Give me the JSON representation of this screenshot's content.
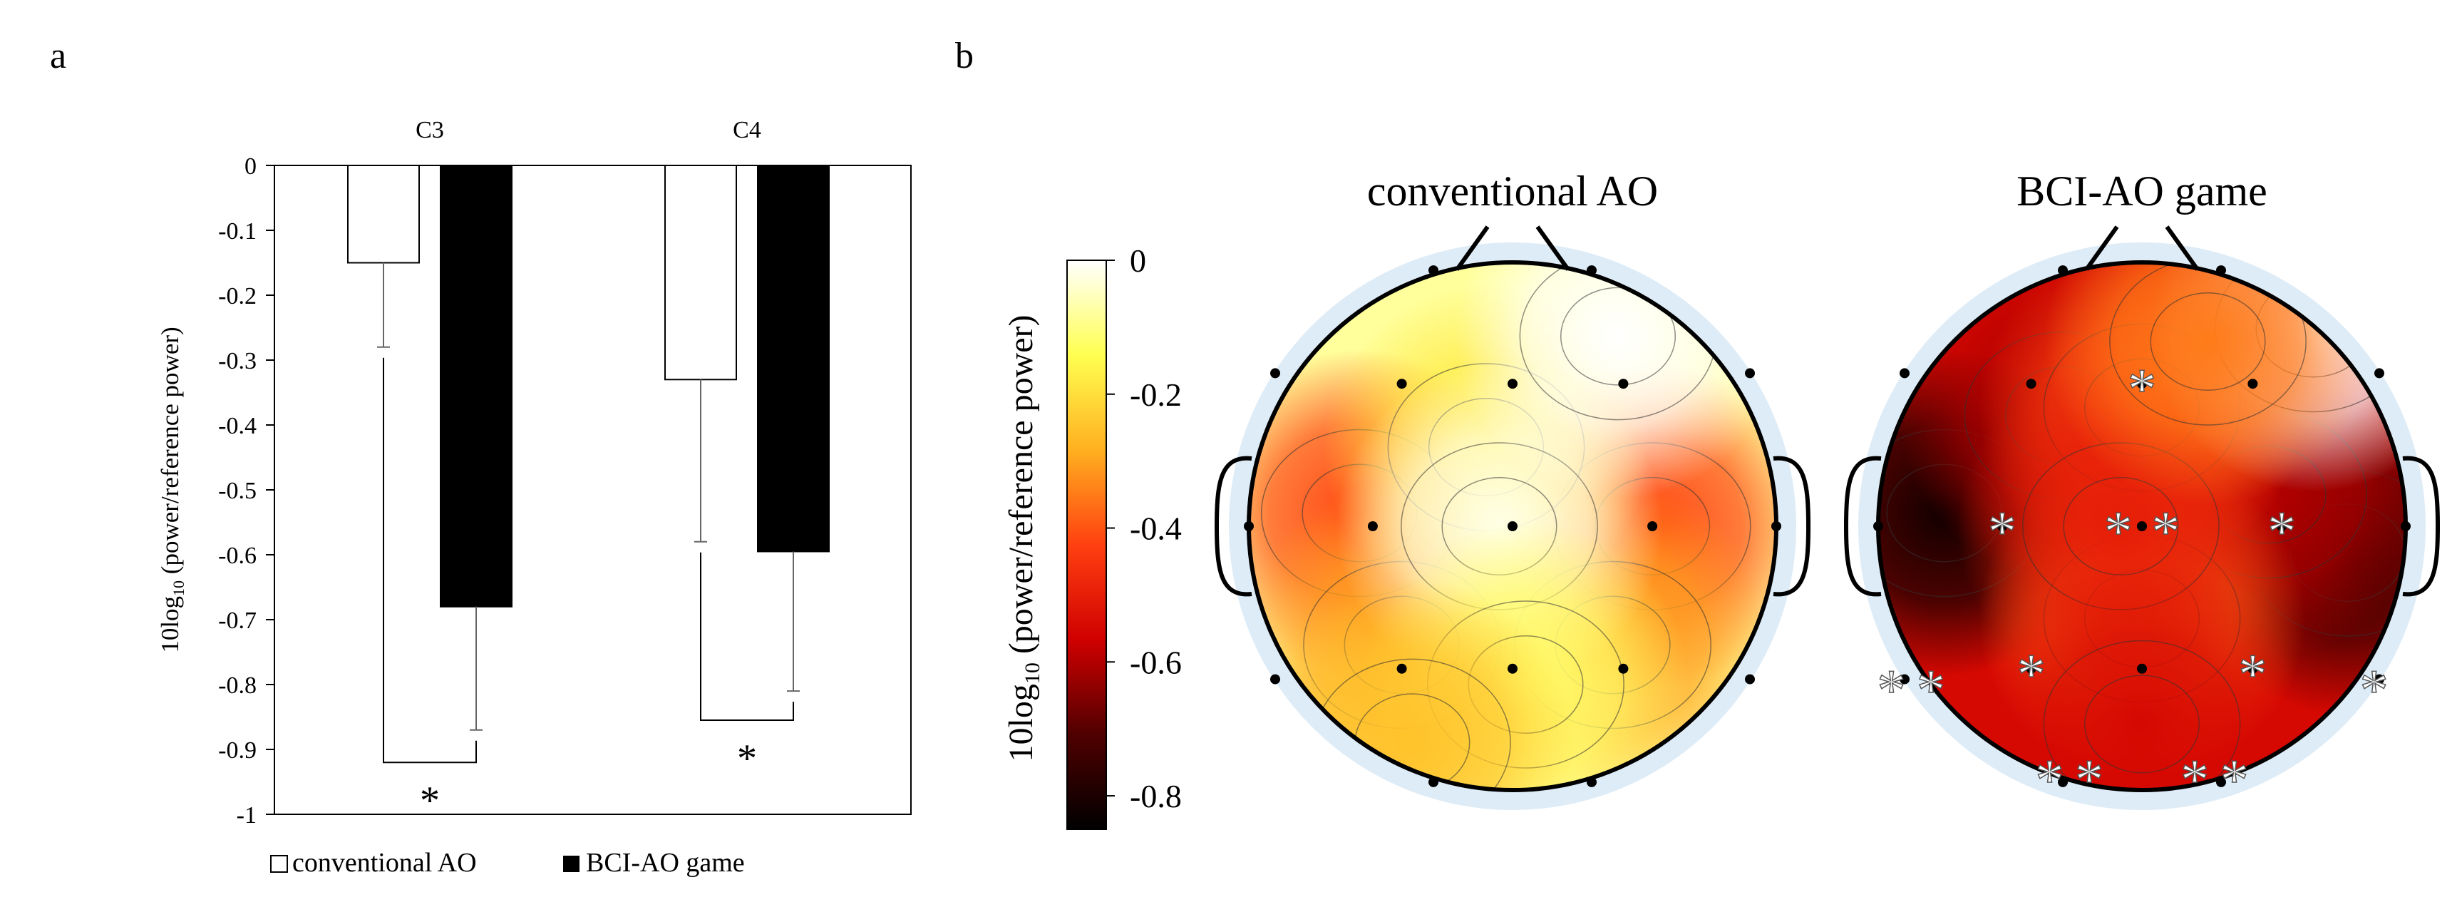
{
  "panel_a_label": "a",
  "panel_b_label": "b",
  "chart_data": [
    {
      "type": "bar",
      "panel": "a",
      "categories": [
        "C3",
        "C4"
      ],
      "series": [
        {
          "name": "conventional AO",
          "values": [
            -0.15,
            -0.33
          ],
          "errors": [
            0.13,
            0.25
          ],
          "fill": "#ffffff"
        },
        {
          "name": "BCI-AO game",
          "values": [
            -0.68,
            -0.595
          ],
          "errors": [
            0.19,
            0.215
          ],
          "fill": "#000000"
        }
      ],
      "ylabel_main": "10log",
      "ylabel_sub": "10",
      "ylabel_rest": " (power/reference power)",
      "ylim": [
        -1,
        0
      ],
      "yticks": [
        0,
        -0.1,
        -0.2,
        -0.3,
        -0.4,
        -0.5,
        -0.6,
        -0.7,
        -0.8,
        -0.9,
        -1
      ],
      "ytick_labels": [
        "0",
        "-0.1",
        "-0.2",
        "-0.3",
        "-0.4",
        "-0.5",
        "-0.6",
        "-0.7",
        "-0.8",
        "-0.9",
        "-1"
      ],
      "significance": [
        {
          "category": "C3",
          "bracket_y": -0.92,
          "label": "*"
        },
        {
          "category": "C4",
          "bracket_y": -0.855,
          "label": "*"
        }
      ],
      "legend": [
        "conventional AO",
        "BCI-AO game"
      ],
      "legend_placement": "bottom"
    },
    {
      "type": "heatmap",
      "panel": "b",
      "maps": [
        {
          "title": "conventional AO",
          "foci": [
            {
              "x": -0.58,
              "y": 0.05,
              "value": -0.42
            },
            {
              "x": 0.53,
              "y": 0.0,
              "value": -0.42
            },
            {
              "x": -0.42,
              "y": -0.45,
              "value": -0.3
            },
            {
              "x": 0.38,
              "y": -0.45,
              "value": -0.3
            },
            {
              "x": -0.1,
              "y": 0.3,
              "value": -0.18
            },
            {
              "x": -0.05,
              "y": 0.0,
              "value": -0.02
            },
            {
              "x": 0.4,
              "y": 0.72,
              "value": 0.0
            },
            {
              "x": 0.05,
              "y": -0.6,
              "value": -0.12
            },
            {
              "x": -0.38,
              "y": -0.82,
              "value": -0.25
            }
          ]
        },
        {
          "title": "BCI-AO game",
          "foci": [
            {
              "x": -0.75,
              "y": 0.05,
              "value": -0.82
            },
            {
              "x": 0.78,
              "y": -0.1,
              "value": -0.75
            },
            {
              "x": -0.3,
              "y": 0.42,
              "value": -0.6
            },
            {
              "x": 0.48,
              "y": 0.12,
              "value": -0.6
            },
            {
              "x": 0.0,
              "y": -0.35,
              "value": -0.38
            },
            {
              "x": 0.0,
              "y": 0.45,
              "value": -0.42
            },
            {
              "x": -0.08,
              "y": 0.0,
              "value": -0.5
            },
            {
              "x": 0.65,
              "y": 0.75,
              "value": 0.0
            },
            {
              "x": 0.25,
              "y": 0.7,
              "value": -0.35
            },
            {
              "x": 0.0,
              "y": -0.75,
              "value": -0.55
            }
          ],
          "significant_electrodes": [
            {
              "x": 0.0,
              "y": 0.54
            },
            {
              "x": -0.53,
              "y": 0.0
            },
            {
              "x": -0.09,
              "y": 0.0
            },
            {
              "x": 0.09,
              "y": 0.0
            },
            {
              "x": 0.53,
              "y": 0.0
            },
            {
              "x": -0.42,
              "y": -0.54
            },
            {
              "x": 0.42,
              "y": -0.54
            },
            {
              "x": -0.95,
              "y": -0.6
            },
            {
              "x": -0.8,
              "y": -0.6
            },
            {
              "x": 0.88,
              "y": -0.6
            },
            {
              "x": -0.35,
              "y": -0.94
            },
            {
              "x": -0.2,
              "y": -0.94
            },
            {
              "x": 0.2,
              "y": -0.94
            },
            {
              "x": 0.35,
              "y": -0.94
            }
          ],
          "significance_marker": "*"
        }
      ],
      "electrodes": [
        {
          "x": -0.3,
          "y": 0.97
        },
        {
          "x": 0.3,
          "y": 0.97
        },
        {
          "x": -0.9,
          "y": 0.58
        },
        {
          "x": -0.42,
          "y": 0.54
        },
        {
          "x": 0.0,
          "y": 0.54
        },
        {
          "x": 0.42,
          "y": 0.54
        },
        {
          "x": 0.9,
          "y": 0.58
        },
        {
          "x": -1.0,
          "y": 0.0
        },
        {
          "x": -0.53,
          "y": 0.0
        },
        {
          "x": 0.0,
          "y": 0.0
        },
        {
          "x": 0.53,
          "y": 0.0
        },
        {
          "x": 1.0,
          "y": 0.0
        },
        {
          "x": -0.9,
          "y": -0.58
        },
        {
          "x": -0.42,
          "y": -0.54
        },
        {
          "x": 0.0,
          "y": -0.54
        },
        {
          "x": 0.42,
          "y": -0.54
        },
        {
          "x": 0.9,
          "y": -0.58
        },
        {
          "x": -0.3,
          "y": -0.97
        },
        {
          "x": 0.3,
          "y": -0.97
        }
      ],
      "colorbar": {
        "range": [
          -0.85,
          0
        ],
        "ticks": [
          0,
          -0.2,
          -0.4,
          -0.6,
          -0.8
        ],
        "tick_labels": [
          "0",
          "-0.2",
          "-0.4",
          "-0.6",
          "-0.8"
        ],
        "label_main": "10log",
        "label_sub": "10",
        "label_rest": " (power/reference power)",
        "colormap": "hot",
        "stops": [
          "#ffffff",
          "#ffff50",
          "#ffb020",
          "#ff4010",
          "#d00000",
          "#500000",
          "#000000"
        ]
      }
    }
  ]
}
